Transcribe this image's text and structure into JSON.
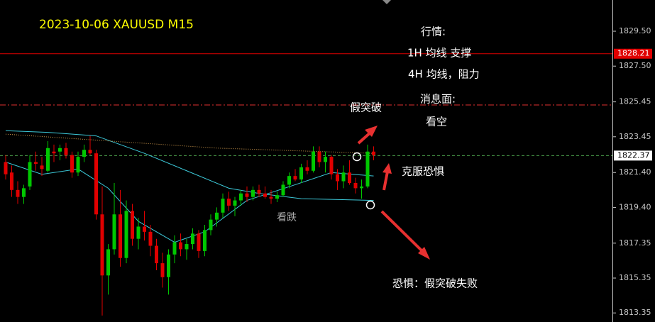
{
  "chart_data": {
    "type": "candlestick",
    "title": "2023-10-06 XAUUSD M15",
    "up_color": "#00c800",
    "down_color": "#e00000",
    "open": [
      1822.0,
      1821.4,
      1820.4,
      1820.0,
      1820.6,
      1822.0,
      1821.8,
      1821.5,
      1822.6,
      1822.6,
      1822.8,
      1822.4,
      1821.4,
      1822.3,
      1822.7,
      1822.5,
      1819.0,
      1815.5,
      1817.0,
      1819.0,
      1816.5,
      1819.2,
      1817.6,
      1818.3,
      1818.0,
      1817.2,
      1816.2,
      1815.4,
      1816.7,
      1817.4,
      1817.0,
      1817.3,
      1817.9,
      1816.9,
      1818.1,
      1818.7,
      1819.1,
      1819.9,
      1819.5,
      1819.8,
      1820.2,
      1820.0,
      1820.4,
      1820.2,
      1820.0,
      1819.9,
      1820.1,
      1820.7,
      1821.2,
      1821.0,
      1821.7,
      1821.5,
      1822.6,
      1822.0,
      1822.3,
      1821.3,
      1820.9,
      1821.4,
      1820.8,
      1820.5,
      1820.6,
      1822.6
    ],
    "high": [
      1822.4,
      1821.8,
      1820.9,
      1820.7,
      1822.4,
      1822.6,
      1822.3,
      1823.2,
      1823.0,
      1823.0,
      1823.1,
      1822.6,
      1822.6,
      1823.0,
      1823.5,
      1822.7,
      1820.6,
      1817.3,
      1820.8,
      1820.4,
      1819.8,
      1819.6,
      1818.8,
      1819.2,
      1818.4,
      1817.6,
      1816.8,
      1817.0,
      1817.8,
      1817.9,
      1817.6,
      1818.2,
      1818.1,
      1818.4,
      1819.0,
      1819.4,
      1820.2,
      1820.3,
      1820.0,
      1820.4,
      1820.6,
      1820.6,
      1820.7,
      1820.6,
      1820.4,
      1820.3,
      1820.9,
      1821.4,
      1821.6,
      1821.9,
      1822.1,
      1822.9,
      1822.9,
      1822.6,
      1822.4,
      1821.6,
      1821.8,
      1822.1,
      1821.1,
      1821.0,
      1823.0,
      1822.9
    ],
    "low": [
      1821.0,
      1820.0,
      1819.6,
      1819.6,
      1820.4,
      1821.5,
      1821.2,
      1821.4,
      1822.0,
      1822.1,
      1822.2,
      1821.1,
      1821.2,
      1822.0,
      1822.4,
      1818.7,
      1813.2,
      1814.4,
      1816.7,
      1816.0,
      1816.2,
      1817.2,
      1817.0,
      1817.5,
      1816.6,
      1815.8,
      1814.8,
      1814.4,
      1816.2,
      1816.6,
      1816.4,
      1817.0,
      1816.5,
      1816.6,
      1817.8,
      1818.3,
      1818.8,
      1819.2,
      1818.9,
      1819.5,
      1819.7,
      1819.8,
      1820.0,
      1819.9,
      1819.6,
      1819.7,
      1820.0,
      1820.5,
      1820.9,
      1820.8,
      1821.3,
      1821.4,
      1821.7,
      1821.4,
      1821.0,
      1820.4,
      1820.5,
      1820.7,
      1820.2,
      1819.9,
      1820.5,
      1822.1
    ],
    "close": [
      1821.3,
      1820.4,
      1820.0,
      1820.5,
      1822.0,
      1821.9,
      1821.6,
      1822.8,
      1822.5,
      1822.8,
      1822.4,
      1821.4,
      1822.3,
      1822.7,
      1822.5,
      1819.0,
      1815.5,
      1817.0,
      1819.0,
      1816.5,
      1819.2,
      1817.6,
      1818.3,
      1818.0,
      1817.2,
      1816.2,
      1815.4,
      1816.7,
      1817.4,
      1817.0,
      1817.3,
      1817.9,
      1816.9,
      1818.1,
      1818.7,
      1819.1,
      1819.9,
      1819.5,
      1819.8,
      1820.2,
      1820.0,
      1820.4,
      1820.2,
      1820.0,
      1819.9,
      1820.1,
      1820.7,
      1821.2,
      1821.0,
      1821.7,
      1821.5,
      1822.6,
      1822.0,
      1822.3,
      1821.3,
      1820.9,
      1821.4,
      1820.8,
      1820.5,
      1820.6,
      1822.6,
      1822.4
    ],
    "moving_averages": [
      {
        "color": "#3cc8d8",
        "style": "solid",
        "x": [
          0,
          7,
          15,
          23,
          30,
          37,
          42,
          49,
          61
        ],
        "values": [
          1823.8,
          1823.7,
          1823.5,
          1822.5,
          1821.5,
          1820.5,
          1820.2,
          1819.9,
          1819.8
        ]
      },
      {
        "color": "#3cc8d8",
        "style": "solid",
        "x": [
          0,
          6,
          12,
          17,
          22,
          28,
          33,
          40,
          48,
          54,
          61
        ],
        "values": [
          1822.0,
          1821.3,
          1821.6,
          1820.5,
          1818.6,
          1817.4,
          1818.0,
          1819.8,
          1820.7,
          1821.4,
          1821.2
        ]
      },
      {
        "color": "#d8a050",
        "style": "dotted",
        "x": [
          0,
          35,
          61
        ],
        "values": [
          1823.6,
          1822.8,
          1822.5
        ]
      }
    ],
    "levels": [
      {
        "value": 1825.27,
        "color": "#e03030",
        "style": "dashdot"
      }
    ],
    "price_lines": [
      {
        "value": 1828.21,
        "color": "#e00000",
        "text_color": "#ffffff"
      },
      {
        "value": 1822.37,
        "color": "#ffffff",
        "text_color": "#000000"
      }
    ],
    "ylim": [
      1812.83,
      1831.29
    ],
    "yticks": [
      {
        "value": 1829.5,
        "label": "1829.50"
      },
      {
        "value": 1827.5,
        "label": "1827.50"
      },
      1825.45,
      1823.45,
      {
        "value": 1821.4,
        "label": "1821.40"
      },
      {
        "value": 1819.4,
        "label": "1819.40"
      },
      1817.35,
      1815.35,
      1813.35
    ],
    "annotations": [
      "行情:",
      "1H 均线 支撑",
      "4H 均线，阻力",
      "消息面:",
      "假突破",
      "看空",
      "克服恐惧",
      "看跌",
      "恐惧：假突破失败"
    ]
  }
}
